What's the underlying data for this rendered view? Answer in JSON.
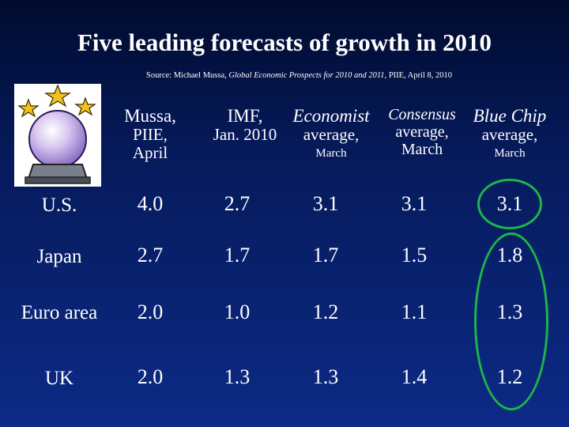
{
  "title": "Five leading forecasts of growth in 2010",
  "source": {
    "prefix": "Source: Michael Mussa, ",
    "italic": "Global Economic Prospects for 2010 and 2011",
    "suffix": ", PIIE, April 8, 2010"
  },
  "columns": [
    {
      "line1": "Mussa,",
      "line2": "PIIE,",
      "line3": "April",
      "note": ""
    },
    {
      "line1": "IMF,",
      "line2": "Jan. 2010",
      "line3": "",
      "note": ""
    },
    {
      "line1": "Economist",
      "line2": "average,",
      "line3": "",
      "note": "March"
    },
    {
      "line1": "Consensus",
      "line2": "average,",
      "line3": "March",
      "note": ""
    },
    {
      "line1": "Blue Chip",
      "line2": "average,",
      "line3": "",
      "note": "March"
    }
  ],
  "rows": [
    {
      "label": "U.S.",
      "values": [
        "4.0",
        "2.7",
        "3.1",
        "3.1",
        "3.1"
      ]
    },
    {
      "label": "Japan",
      "values": [
        "2.7",
        "1.7",
        "1.7",
        "1.5",
        "1.8"
      ]
    },
    {
      "label": "Euro area",
      "values": [
        "2.0",
        "1.0",
        "1.2",
        "1.1",
        "1.3"
      ]
    },
    {
      "label": "UK",
      "values": [
        "2.0",
        "1.3",
        "1.3",
        "1.4",
        "1.2"
      ]
    }
  ],
  "colors": {
    "highlight": "#1db54a",
    "background": "#0c2a86"
  },
  "icons": [
    "crystal-ball-icon",
    "star-icon"
  ]
}
